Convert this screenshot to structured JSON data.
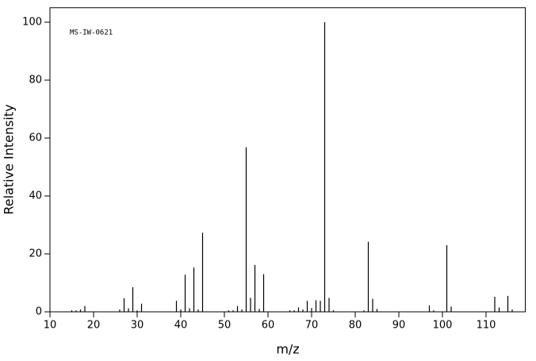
{
  "chart_data": {
    "type": "stick",
    "annotation": "MS-IW-0621",
    "x_label": "m/z",
    "y_label": "Relative Intensity",
    "x": [
      15,
      16,
      17,
      18,
      26,
      27,
      28,
      29,
      30,
      31,
      39,
      40,
      41,
      42,
      43,
      44,
      45,
      51,
      52,
      53,
      54,
      55,
      56,
      57,
      58,
      59,
      65,
      66,
      67,
      68,
      69,
      70,
      71,
      72,
      73,
      74,
      75,
      82,
      83,
      84,
      85,
      97,
      98,
      101,
      102,
      112,
      113,
      115,
      116
    ],
    "values": [
      0.5,
      0.5,
      0.8,
      2,
      0.8,
      4.7,
      1.2,
      8.5,
      0.5,
      2.8,
      3.8,
      0.8,
      12.8,
      1.2,
      15.3,
      0.8,
      27.3,
      0.5,
      0.5,
      2,
      0.8,
      56.8,
      4.8,
      16.2,
      1,
      13,
      0.5,
      0.5,
      1.5,
      0.8,
      3.8,
      1.3,
      4,
      3.8,
      100,
      4.8,
      0.5,
      0.5,
      24.2,
      4.5,
      1,
      2.2,
      0.5,
      23,
      1.8,
      5.2,
      1.5,
      5.5,
      0.8
    ],
    "color": "#000000",
    "xlim": [
      10,
      119
    ],
    "ylim": [
      0,
      105
    ],
    "xticks": [
      10,
      20,
      30,
      40,
      50,
      60,
      70,
      80,
      90,
      100,
      110
    ],
    "yticks": [
      0,
      20,
      40,
      60,
      80,
      100
    ]
  }
}
